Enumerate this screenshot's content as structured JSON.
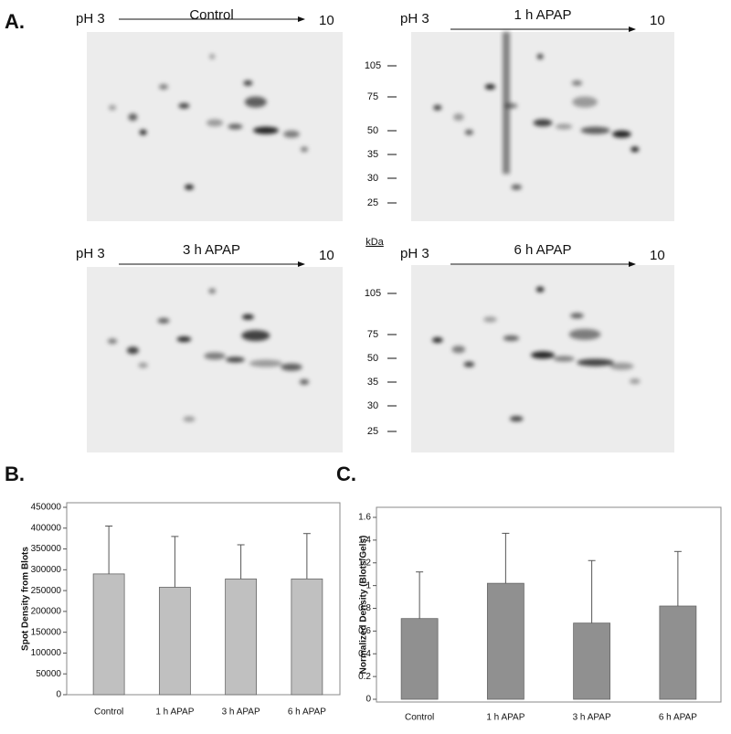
{
  "panel_labels": [
    "A.",
    "B.",
    "C."
  ],
  "gels": [
    {
      "ph_start": "pH 3",
      "title": "Control",
      "ph_end": "10"
    },
    {
      "ph_start": "pH 3",
      "title": "1 h APAP",
      "ph_end": "10"
    },
    {
      "ph_start": "pH 3",
      "title": "3 h APAP",
      "ph_end": "10"
    },
    {
      "ph_start": "pH 3",
      "title": "6 h APAP",
      "ph_end": "10"
    }
  ],
  "markers": [
    105,
    75,
    50,
    35,
    30,
    25
  ],
  "marker_unit": "kDa",
  "chart_data": [
    {
      "type": "bar",
      "ylabel": "Spot Density from Blots",
      "categories": [
        "Control",
        "1 h APAP",
        "3 h APAP",
        "6 h APAP"
      ],
      "values": [
        290000,
        258000,
        278000,
        278000
      ],
      "errors": [
        115000,
        122000,
        82000,
        109000
      ],
      "color": "#c0c0c0",
      "ylim": [
        0,
        450000
      ],
      "yticks": [
        0,
        50000,
        100000,
        150000,
        200000,
        250000,
        300000,
        350000,
        400000,
        450000
      ]
    },
    {
      "type": "bar",
      "ylabel": "Normalized Density (Blots/Gels)",
      "categories": [
        "Control",
        "1 h APAP",
        "3 h APAP",
        "6 h APAP"
      ],
      "values": [
        0.71,
        1.02,
        0.67,
        0.82
      ],
      "errors": [
        0.41,
        0.44,
        0.55,
        0.48
      ],
      "color": "#909090",
      "ylim": [
        0,
        1.6
      ],
      "yticks": [
        0,
        0.2,
        0.4,
        0.6,
        0.8,
        1,
        1.2,
        1.4,
        1.6
      ]
    }
  ]
}
